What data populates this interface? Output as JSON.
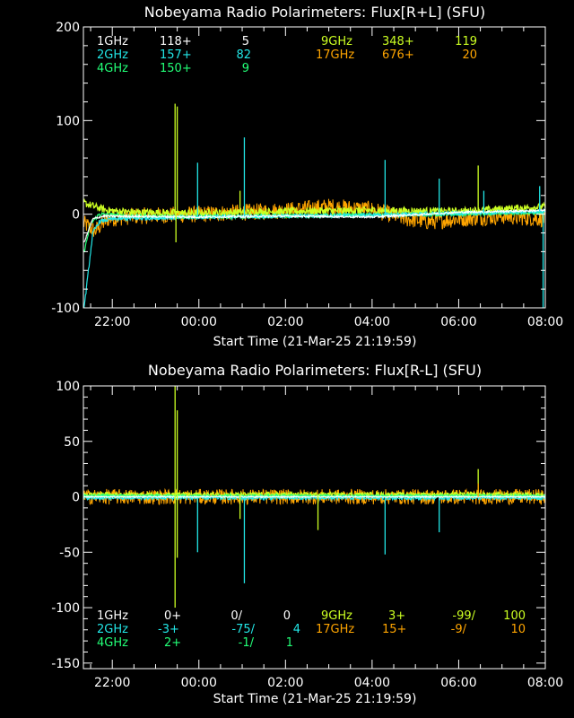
{
  "colors": {
    "bg": "#000000",
    "axis": "#ffffff",
    "g1": "#ffffff",
    "g2": "#22e6e6",
    "g4": "#22ff77",
    "g9": "#ccff22",
    "g17": "#ffa500"
  },
  "chart_data": [
    {
      "type": "line",
      "title": "Nobeyama Radio Polarimeters: Flux[R+L] (SFU)",
      "xlabel": "Start Time (21-Mar-25 21:19:59)",
      "ylabel": "",
      "ylim": [
        -100,
        200
      ],
      "xlim_hours": [
        21.3331,
        32.0
      ],
      "xtick_labels": [
        "22:00",
        "00:00",
        "02:00",
        "04:00",
        "06:00",
        "08:00"
      ],
      "ytick_labels": [
        "-100",
        "0",
        "100",
        "200"
      ],
      "ytick_values": [
        -100,
        0,
        100,
        200
      ],
      "grid": false,
      "legend": [
        {
          "band": "1GHz",
          "a": "118+",
          "b": "5",
          "c": ""
        },
        {
          "band": "2GHz",
          "a": "157+",
          "b": "82",
          "c": ""
        },
        {
          "band": "4GHz",
          "a": "150+",
          "b": "9",
          "c": ""
        },
        {
          "band": "9GHz",
          "a": "348+",
          "b": "119",
          "c": ""
        },
        {
          "band": "17GHz",
          "a": "676+",
          "b": "20",
          "c": ""
        }
      ],
      "series": [
        {
          "key": "g17",
          "baseline": [
            [
              21.35,
              -10
            ],
            [
              21.6,
              -18
            ],
            [
              21.9,
              -5
            ],
            [
              22.5,
              -2
            ],
            [
              24,
              0
            ],
            [
              26,
              4
            ],
            [
              27,
              8
            ],
            [
              28,
              5
            ],
            [
              28.8,
              -5
            ],
            [
              29.3,
              -8
            ],
            [
              30,
              -5
            ],
            [
              31,
              -2
            ],
            [
              32,
              -5
            ]
          ],
          "noise": 9
        },
        {
          "key": "g9",
          "baseline": [
            [
              21.35,
              12
            ],
            [
              21.6,
              8
            ],
            [
              21.9,
              4
            ],
            [
              22.5,
              2
            ],
            [
              24,
              1
            ],
            [
              26,
              3
            ],
            [
              28,
              4
            ],
            [
              30,
              3
            ],
            [
              32,
              8
            ]
          ],
          "noise": 4
        },
        {
          "key": "g4",
          "baseline": [
            [
              21.35,
              -40
            ],
            [
              21.5,
              -10
            ],
            [
              21.7,
              0
            ],
            [
              22.5,
              -2
            ],
            [
              24,
              -3
            ],
            [
              26,
              -2
            ],
            [
              28,
              -1
            ],
            [
              30,
              0
            ],
            [
              32,
              2
            ]
          ],
          "noise": 2
        },
        {
          "key": "g2",
          "baseline": [
            [
              21.35,
              -100
            ],
            [
              21.45,
              -60
            ],
            [
              21.55,
              -20
            ],
            [
              21.7,
              -8
            ],
            [
              22.0,
              -5
            ],
            [
              24,
              -3
            ],
            [
              26,
              -2
            ],
            [
              28,
              -1
            ],
            [
              30,
              1
            ],
            [
              32,
              3
            ]
          ],
          "noise": 2
        },
        {
          "key": "g1",
          "baseline": [
            [
              21.35,
              -30
            ],
            [
              21.55,
              -5
            ],
            [
              21.8,
              -2
            ],
            [
              24,
              -3
            ],
            [
              26,
              -2
            ],
            [
              28,
              -3
            ],
            [
              30,
              2
            ],
            [
              32,
              4
            ]
          ],
          "noise": 1
        }
      ],
      "spikes": [
        {
          "key": "g9",
          "t": 23.45,
          "v": 118
        },
        {
          "key": "g9",
          "t": 23.5,
          "v": 115
        },
        {
          "key": "g9",
          "t": 23.47,
          "v": -30
        },
        {
          "key": "g2",
          "t": 23.97,
          "v": 55
        },
        {
          "key": "g2",
          "t": 25.05,
          "v": 82
        },
        {
          "key": "g9",
          "t": 24.95,
          "v": 25
        },
        {
          "key": "g2",
          "t": 28.3,
          "v": 58
        },
        {
          "key": "g2",
          "t": 29.55,
          "v": 38
        },
        {
          "key": "g9",
          "t": 30.45,
          "v": 52
        },
        {
          "key": "g2",
          "t": 30.58,
          "v": 25
        },
        {
          "key": "g2",
          "t": 31.87,
          "v": 30
        },
        {
          "key": "g2",
          "t": 31.95,
          "v": -100
        }
      ]
    },
    {
      "type": "line",
      "title": "Nobeyama Radio Polarimeters: Flux[R-L] (SFU)",
      "xlabel": "Start Time (21-Mar-25 21:19:59)",
      "ylabel": "",
      "ylim": [
        -155,
        100
      ],
      "xlim_hours": [
        21.3331,
        32.0
      ],
      "xtick_labels": [
        "22:00",
        "00:00",
        "02:00",
        "04:00",
        "06:00",
        "08:00"
      ],
      "ytick_labels": [
        "-150",
        "-100",
        "-50",
        "0",
        "50",
        "100"
      ],
      "ytick_values": [
        -150,
        -100,
        -50,
        0,
        50,
        100
      ],
      "grid": false,
      "legend": [
        {
          "band": "1GHz",
          "a": "0+",
          "b": "0/",
          "c": "0"
        },
        {
          "band": "2GHz",
          "a": "-3+",
          "b": "-75/",
          "c": "4"
        },
        {
          "band": "4GHz",
          "a": "2+",
          "b": "-1/",
          "c": "1"
        },
        {
          "band": "9GHz",
          "a": "3+",
          "b": "-99/",
          "c": "100"
        },
        {
          "band": "17GHz",
          "a": "15+",
          "b": "-9/",
          "c": "10"
        }
      ],
      "series": [
        {
          "key": "g17",
          "baseline": [
            [
              21.35,
              0
            ],
            [
              32,
              0
            ]
          ],
          "noise": 7
        },
        {
          "key": "g9",
          "baseline": [
            [
              21.35,
              2
            ],
            [
              32,
              2
            ]
          ],
          "noise": 2
        },
        {
          "key": "g4",
          "baseline": [
            [
              21.35,
              1
            ],
            [
              32,
              1
            ]
          ],
          "noise": 1
        },
        {
          "key": "g2",
          "baseline": [
            [
              21.35,
              -1
            ],
            [
              32,
              -1
            ]
          ],
          "noise": 1.5
        },
        {
          "key": "g1",
          "baseline": [
            [
              21.35,
              0
            ],
            [
              32,
              0
            ]
          ],
          "noise": 0.5
        }
      ],
      "spikes": [
        {
          "key": "g9",
          "t": 23.45,
          "v": 100
        },
        {
          "key": "g9",
          "t": 23.45,
          "v": -100
        },
        {
          "key": "g9",
          "t": 23.5,
          "v": 78
        },
        {
          "key": "g9",
          "t": 23.5,
          "v": -55
        },
        {
          "key": "g2",
          "t": 23.97,
          "v": -50
        },
        {
          "key": "g2",
          "t": 25.05,
          "v": -78
        },
        {
          "key": "g9",
          "t": 24.95,
          "v": -20
        },
        {
          "key": "g9",
          "t": 26.75,
          "v": -30
        },
        {
          "key": "g2",
          "t": 28.3,
          "v": -52
        },
        {
          "key": "g2",
          "t": 29.55,
          "v": -32
        },
        {
          "key": "g9",
          "t": 30.45,
          "v": 25
        },
        {
          "key": "g17",
          "t": 30.45,
          "v": 12
        }
      ]
    }
  ]
}
